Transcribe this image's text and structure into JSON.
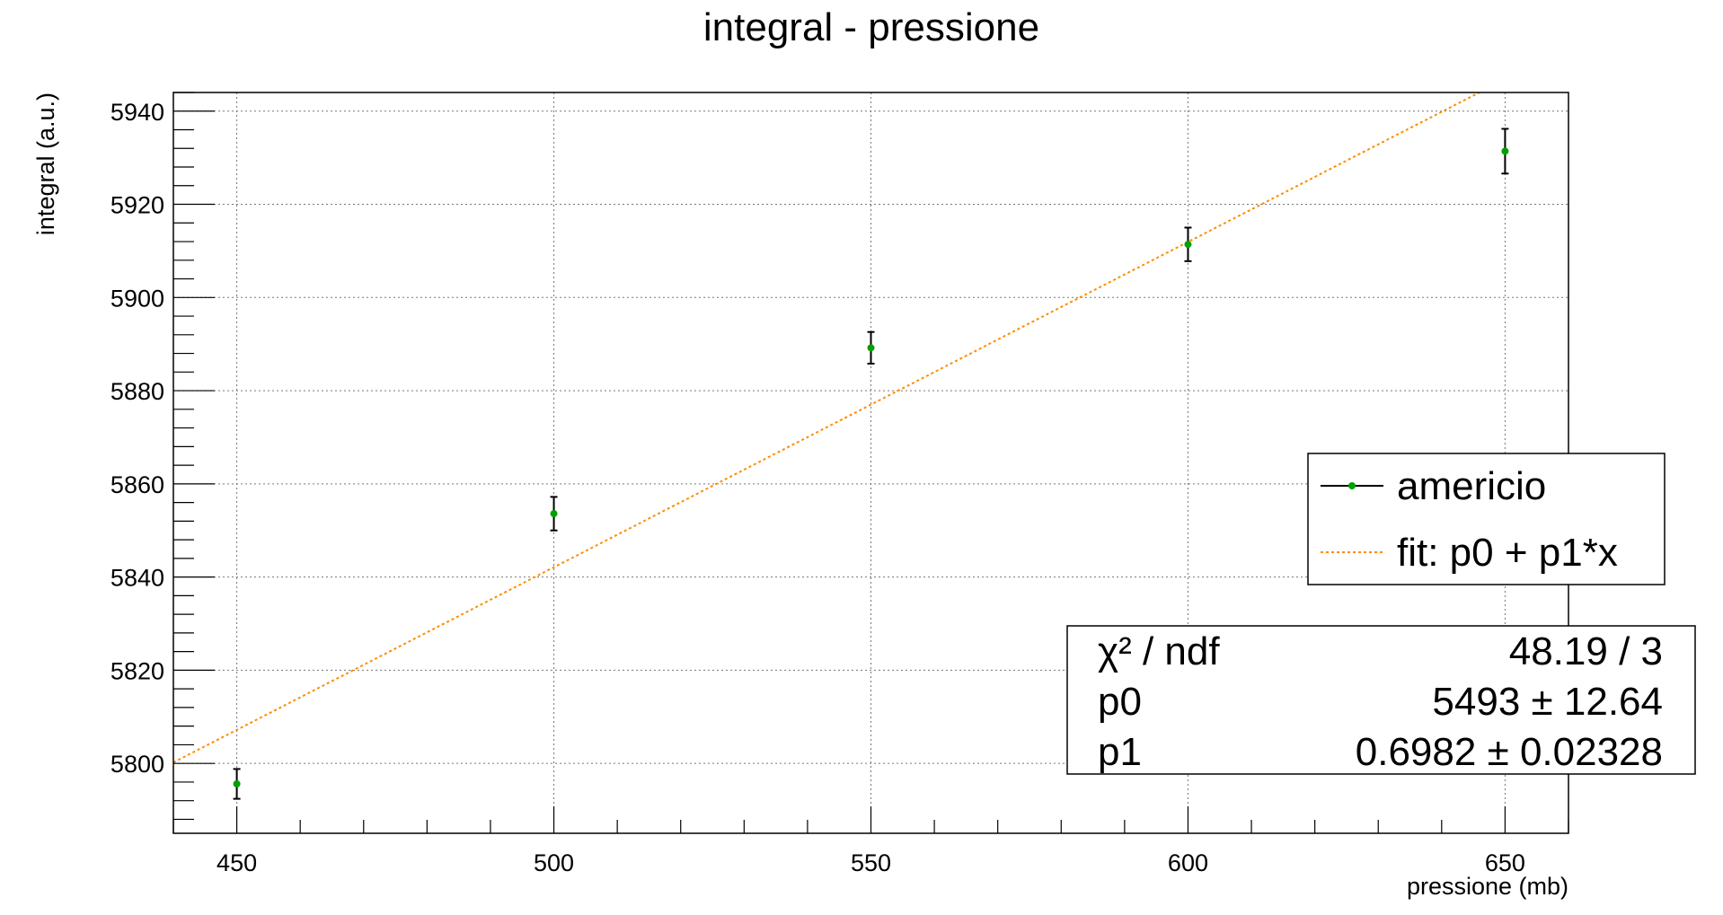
{
  "chart_data": {
    "type": "scatter",
    "title": "integral - pressione",
    "xlabel": "pressione (mb)",
    "ylabel": "integral (a.u.)",
    "xlim": [
      440,
      660
    ],
    "ylim": [
      5785,
      5944
    ],
    "grid": true,
    "x_ticks": [
      450,
      500,
      550,
      600,
      650
    ],
    "y_ticks": [
      5800,
      5820,
      5840,
      5860,
      5880,
      5900,
      5920,
      5940
    ],
    "series": [
      {
        "name": "americio",
        "color": "#00a000",
        "points": [
          {
            "x": 450,
            "y": 5795.6,
            "err": 3.2
          },
          {
            "x": 500,
            "y": 5853.6,
            "err": 3.6
          },
          {
            "x": 550,
            "y": 5889.2,
            "err": 3.4
          },
          {
            "x": 600,
            "y": 5911.4,
            "err": 3.6
          },
          {
            "x": 650,
            "y": 5931.4,
            "err": 4.8
          }
        ]
      },
      {
        "name": "fit: p0 + p1*x",
        "color": "#ff8c00",
        "fit": {
          "p0": 5493,
          "p1": 0.6982
        }
      }
    ],
    "legend_position": "right",
    "fit_stats": [
      {
        "name": "χ² / ndf",
        "value": "48.19 / 3"
      },
      {
        "name": "p0",
        "value": "5493 ± 12.64"
      },
      {
        "name": "p1",
        "value": "0.6982 ± 0.02328"
      }
    ]
  }
}
